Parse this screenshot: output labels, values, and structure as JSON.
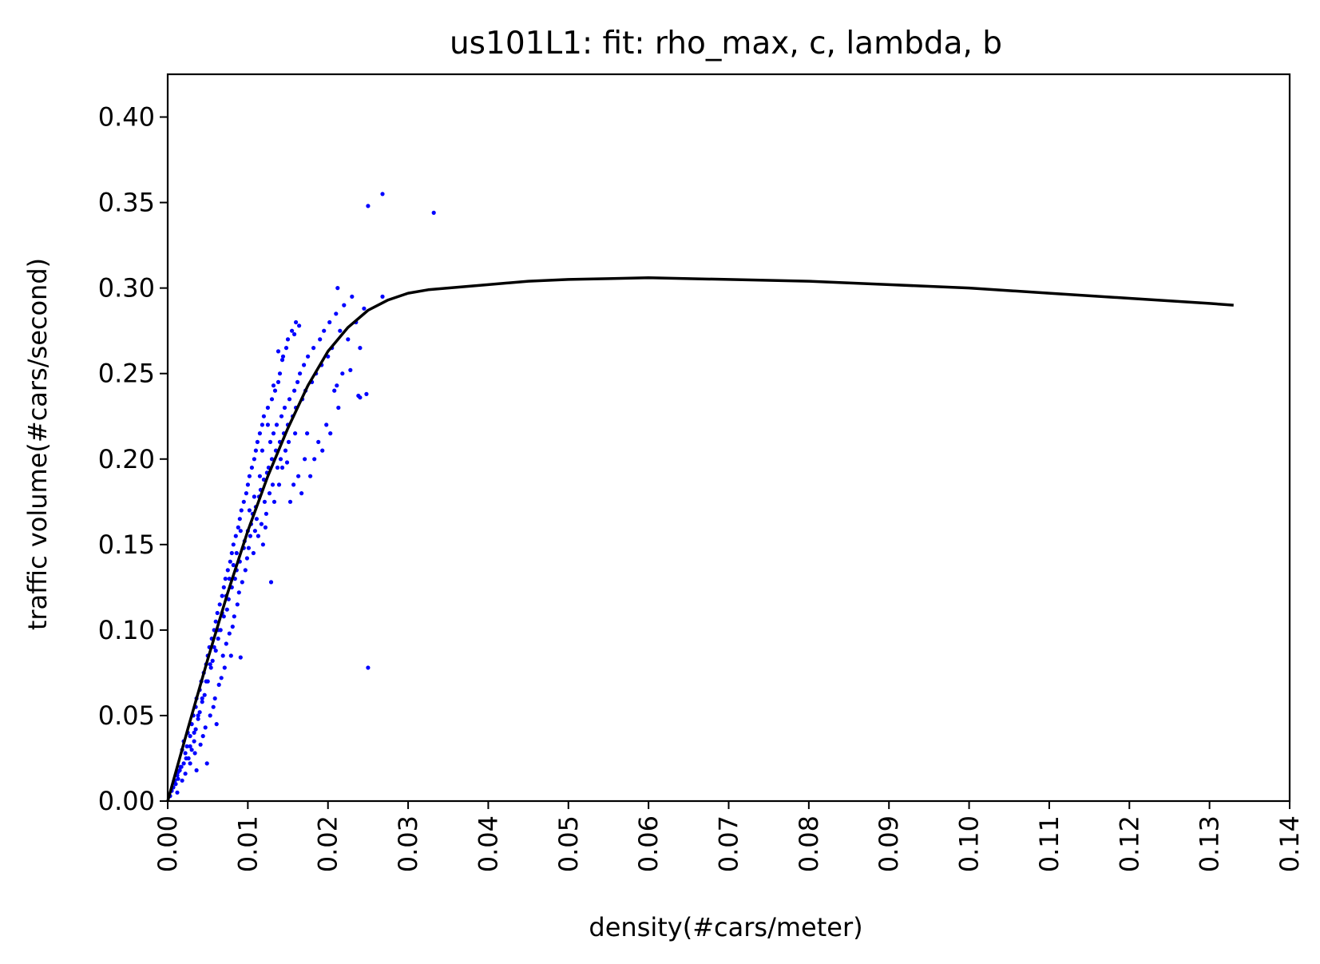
{
  "chart_data": {
    "type": "scatter",
    "title": "us101L1: fit: rho_max, c, lambda, b",
    "xlabel": "density(#cars/meter)",
    "ylabel": "traffic volume(#cars/second)",
    "xlim": [
      0,
      0.14
    ],
    "ylim": [
      0,
      0.425
    ],
    "x_ticks": [
      "0.00",
      "0.01",
      "0.02",
      "0.03",
      "0.04",
      "0.05",
      "0.06",
      "0.07",
      "0.08",
      "0.09",
      "0.10",
      "0.11",
      "0.12",
      "0.13",
      "0.14"
    ],
    "y_ticks": [
      "0.00",
      "0.05",
      "0.10",
      "0.15",
      "0.20",
      "0.25",
      "0.30",
      "0.35",
      "0.40"
    ],
    "grid": false,
    "series": [
      {
        "kind": "scatter",
        "color": "#0000ff",
        "points": [
          [
            0.0003,
            0.003
          ],
          [
            0.0005,
            0.006
          ],
          [
            0.0007,
            0.008
          ],
          [
            0.0008,
            0.012
          ],
          [
            0.001,
            0.01
          ],
          [
            0.0012,
            0.015
          ],
          [
            0.0013,
            0.013
          ],
          [
            0.0015,
            0.018
          ],
          [
            0.0016,
            0.02
          ],
          [
            0.0018,
            0.03
          ],
          [
            0.002,
            0.022
          ],
          [
            0.002,
            0.035
          ],
          [
            0.0022,
            0.028
          ],
          [
            0.0024,
            0.032
          ],
          [
            0.0025,
            0.04
          ],
          [
            0.0026,
            0.025
          ],
          [
            0.0028,
            0.038
          ],
          [
            0.003,
            0.045
          ],
          [
            0.003,
            0.03
          ],
          [
            0.0032,
            0.05
          ],
          [
            0.0033,
            0.035
          ],
          [
            0.0035,
            0.055
          ],
          [
            0.0035,
            0.042
          ],
          [
            0.0036,
            0.06
          ],
          [
            0.0038,
            0.048
          ],
          [
            0.004,
            0.065
          ],
          [
            0.004,
            0.052
          ],
          [
            0.0042,
            0.07
          ],
          [
            0.0043,
            0.058
          ],
          [
            0.0045,
            0.075
          ],
          [
            0.0046,
            0.062
          ],
          [
            0.0048,
            0.08
          ],
          [
            0.005,
            0.085
          ],
          [
            0.005,
            0.07
          ],
          [
            0.0052,
            0.09
          ],
          [
            0.0054,
            0.078
          ],
          [
            0.0055,
            0.095
          ],
          [
            0.0056,
            0.082
          ],
          [
            0.0058,
            0.1
          ],
          [
            0.006,
            0.088
          ],
          [
            0.006,
            0.105
          ],
          [
            0.0062,
            0.11
          ],
          [
            0.0063,
            0.095
          ],
          [
            0.0065,
            0.115
          ],
          [
            0.0066,
            0.1
          ],
          [
            0.0068,
            0.12
          ],
          [
            0.007,
            0.125
          ],
          [
            0.007,
            0.108
          ],
          [
            0.0072,
            0.13
          ],
          [
            0.0074,
            0.112
          ],
          [
            0.0075,
            0.135
          ],
          [
            0.0076,
            0.118
          ],
          [
            0.0078,
            0.14
          ],
          [
            0.008,
            0.145
          ],
          [
            0.008,
            0.125
          ],
          [
            0.0082,
            0.15
          ],
          [
            0.0084,
            0.13
          ],
          [
            0.0085,
            0.155
          ],
          [
            0.0086,
            0.135
          ],
          [
            0.0088,
            0.16
          ],
          [
            0.009,
            0.14
          ],
          [
            0.009,
            0.165
          ],
          [
            0.0092,
            0.17
          ],
          [
            0.0094,
            0.148
          ],
          [
            0.0095,
            0.175
          ],
          [
            0.0096,
            0.152
          ],
          [
            0.0098,
            0.18
          ],
          [
            0.01,
            0.158
          ],
          [
            0.01,
            0.185
          ],
          [
            0.0102,
            0.19
          ],
          [
            0.0104,
            0.162
          ],
          [
            0.0105,
            0.195
          ],
          [
            0.0106,
            0.168
          ],
          [
            0.0108,
            0.2
          ],
          [
            0.011,
            0.172
          ],
          [
            0.011,
            0.205
          ],
          [
            0.0112,
            0.21
          ],
          [
            0.0114,
            0.178
          ],
          [
            0.0115,
            0.215
          ],
          [
            0.0116,
            0.182
          ],
          [
            0.0118,
            0.22
          ],
          [
            0.012,
            0.188
          ],
          [
            0.012,
            0.225
          ],
          [
            0.0122,
            0.16
          ],
          [
            0.0124,
            0.192
          ],
          [
            0.0125,
            0.23
          ],
          [
            0.0126,
            0.195
          ],
          [
            0.0128,
            0.21
          ],
          [
            0.013,
            0.2
          ],
          [
            0.013,
            0.235
          ],
          [
            0.0132,
            0.215
          ],
          [
            0.0134,
            0.24
          ],
          [
            0.0135,
            0.205
          ],
          [
            0.0136,
            0.22
          ],
          [
            0.0138,
            0.245
          ],
          [
            0.014,
            0.21
          ],
          [
            0.014,
            0.25
          ],
          [
            0.0142,
            0.225
          ],
          [
            0.0144,
            0.26
          ],
          [
            0.0145,
            0.215
          ],
          [
            0.0146,
            0.23
          ],
          [
            0.0148,
            0.265
          ],
          [
            0.015,
            0.22
          ],
          [
            0.015,
            0.27
          ],
          [
            0.0152,
            0.235
          ],
          [
            0.0155,
            0.275
          ],
          [
            0.0156,
            0.225
          ],
          [
            0.0158,
            0.24
          ],
          [
            0.016,
            0.28
          ],
          [
            0.016,
            0.23
          ],
          [
            0.0162,
            0.245
          ],
          [
            0.0165,
            0.25
          ],
          [
            0.0168,
            0.235
          ],
          [
            0.017,
            0.255
          ],
          [
            0.0172,
            0.24
          ],
          [
            0.0175,
            0.26
          ],
          [
            0.018,
            0.245
          ],
          [
            0.0182,
            0.265
          ],
          [
            0.0185,
            0.25
          ],
          [
            0.019,
            0.27
          ],
          [
            0.0192,
            0.255
          ],
          [
            0.0195,
            0.275
          ],
          [
            0.02,
            0.26
          ],
          [
            0.0202,
            0.28
          ],
          [
            0.0205,
            0.265
          ],
          [
            0.021,
            0.285
          ],
          [
            0.0212,
            0.3
          ],
          [
            0.0215,
            0.275
          ],
          [
            0.022,
            0.29
          ],
          [
            0.0225,
            0.27
          ],
          [
            0.023,
            0.295
          ],
          [
            0.0235,
            0.28
          ],
          [
            0.024,
            0.265
          ],
          [
            0.0245,
            0.288
          ],
          [
            0.025,
            0.348
          ],
          [
            0.025,
            0.078
          ],
          [
            0.0268,
            0.355
          ],
          [
            0.0268,
            0.295
          ],
          [
            0.0332,
            0.344
          ],
          [
            0.0012,
            0.005
          ],
          [
            0.0018,
            0.012
          ],
          [
            0.0022,
            0.016
          ],
          [
            0.0028,
            0.022
          ],
          [
            0.0034,
            0.028
          ],
          [
            0.0036,
            0.018
          ],
          [
            0.0041,
            0.033
          ],
          [
            0.0044,
            0.038
          ],
          [
            0.0047,
            0.043
          ],
          [
            0.0049,
            0.022
          ],
          [
            0.0053,
            0.05
          ],
          [
            0.0057,
            0.055
          ],
          [
            0.0059,
            0.06
          ],
          [
            0.0061,
            0.045
          ],
          [
            0.0064,
            0.068
          ],
          [
            0.0067,
            0.072
          ],
          [
            0.0069,
            0.085
          ],
          [
            0.0071,
            0.078
          ],
          [
            0.0073,
            0.092
          ],
          [
            0.0077,
            0.098
          ],
          [
            0.0079,
            0.085
          ],
          [
            0.0081,
            0.102
          ],
          [
            0.0083,
            0.108
          ],
          [
            0.0087,
            0.115
          ],
          [
            0.0089,
            0.122
          ],
          [
            0.0091,
            0.084
          ],
          [
            0.0093,
            0.128
          ],
          [
            0.0097,
            0.135
          ],
          [
            0.0099,
            0.142
          ],
          [
            0.0101,
            0.148
          ],
          [
            0.0103,
            0.155
          ],
          [
            0.0107,
            0.145
          ],
          [
            0.0109,
            0.158
          ],
          [
            0.0111,
            0.165
          ],
          [
            0.0113,
            0.155
          ],
          [
            0.0117,
            0.162
          ],
          [
            0.0119,
            0.15
          ],
          [
            0.0121,
            0.175
          ],
          [
            0.0123,
            0.168
          ],
          [
            0.0127,
            0.18
          ],
          [
            0.0129,
            0.128
          ],
          [
            0.0131,
            0.185
          ],
          [
            0.0133,
            0.175
          ],
          [
            0.0137,
            0.195
          ],
          [
            0.0139,
            0.185
          ],
          [
            0.0141,
            0.2
          ],
          [
            0.0143,
            0.195
          ],
          [
            0.0147,
            0.205
          ],
          [
            0.0149,
            0.198
          ],
          [
            0.0151,
            0.21
          ],
          [
            0.0153,
            0.175
          ],
          [
            0.0157,
            0.185
          ],
          [
            0.0159,
            0.215
          ],
          [
            0.0163,
            0.19
          ],
          [
            0.0167,
            0.18
          ],
          [
            0.0171,
            0.2
          ],
          [
            0.0174,
            0.215
          ],
          [
            0.0178,
            0.19
          ],
          [
            0.0183,
            0.2
          ],
          [
            0.0188,
            0.21
          ],
          [
            0.0193,
            0.205
          ],
          [
            0.0198,
            0.22
          ],
          [
            0.0203,
            0.215
          ],
          [
            0.0208,
            0.24
          ],
          [
            0.0213,
            0.23
          ],
          [
            0.0218,
            0.25
          ],
          [
            0.0228,
            0.252
          ],
          [
            0.0238,
            0.237
          ],
          [
            0.0248,
            0.238
          ],
          [
            0.024,
            0.236
          ],
          [
            0.0211,
            0.243
          ],
          [
            0.0164,
            0.278
          ],
          [
            0.0158,
            0.273
          ],
          [
            0.0143,
            0.258
          ],
          [
            0.0138,
            0.263
          ],
          [
            0.0132,
            0.243
          ],
          [
            0.0125,
            0.22
          ],
          [
            0.0118,
            0.205
          ],
          [
            0.0115,
            0.19
          ],
          [
            0.0108,
            0.178
          ],
          [
            0.0102,
            0.17
          ],
          [
            0.0095,
            0.148
          ],
          [
            0.0091,
            0.158
          ],
          [
            0.0086,
            0.145
          ],
          [
            0.0082,
            0.138
          ],
          [
            0.0077,
            0.13
          ],
          [
            0.0073,
            0.12
          ],
          [
            0.0068,
            0.11
          ],
          [
            0.0063,
            0.1
          ],
          [
            0.0058,
            0.09
          ],
          [
            0.0053,
            0.08
          ],
          [
            0.0048,
            0.07
          ],
          [
            0.0043,
            0.06
          ],
          [
            0.0038,
            0.05
          ],
          [
            0.0033,
            0.04
          ],
          [
            0.0028,
            0.032
          ],
          [
            0.0023,
            0.025
          ],
          [
            0.0017,
            0.02
          ],
          [
            0.0013,
            0.017
          ],
          [
            0.0009,
            0.012
          ]
        ]
      },
      {
        "kind": "line",
        "color": "#000000",
        "x": [
          0.0,
          0.0025,
          0.005,
          0.0075,
          0.01,
          0.0125,
          0.015,
          0.0175,
          0.02,
          0.0225,
          0.025,
          0.0275,
          0.03,
          0.0325,
          0.035,
          0.04,
          0.045,
          0.05,
          0.055,
          0.06,
          0.065,
          0.07,
          0.08,
          0.09,
          0.1,
          0.11,
          0.12,
          0.13,
          0.133
        ],
        "y": [
          0.0,
          0.042,
          0.083,
          0.122,
          0.158,
          0.19,
          0.218,
          0.243,
          0.263,
          0.277,
          0.287,
          0.293,
          0.297,
          0.299,
          0.3,
          0.302,
          0.304,
          0.305,
          0.3055,
          0.306,
          0.3055,
          0.305,
          0.304,
          0.302,
          0.3,
          0.297,
          0.294,
          0.291,
          0.29
        ]
      }
    ]
  }
}
